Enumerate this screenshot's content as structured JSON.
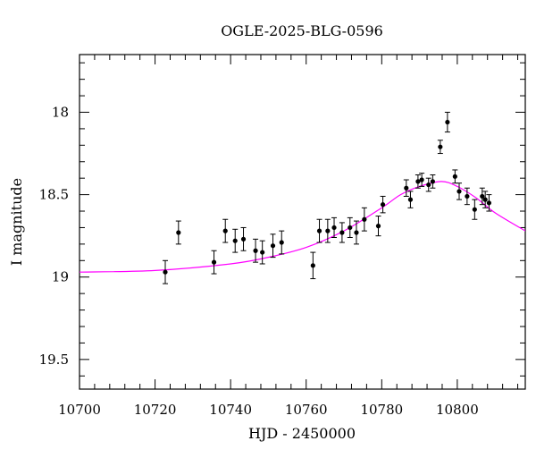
{
  "chart_data": {
    "type": "scatter",
    "title": "OGLE-2025-BLG-0596",
    "xlabel": "HJD - 2450000",
    "ylabel": "I magnitude",
    "xlim": [
      10700,
      10818
    ],
    "ylim": [
      17.65,
      19.68
    ],
    "y_inverted": true,
    "x_ticks": [
      10700,
      10720,
      10740,
      10760,
      10780,
      10800
    ],
    "y_ticks": [
      18,
      18.5,
      19,
      19.5
    ],
    "y_tick_labels": [
      "18",
      "18.5",
      "19",
      "19.5"
    ],
    "colors": {
      "model": "#ff00ff",
      "points": "#000000",
      "frame": "#000000"
    },
    "series": [
      {
        "type": "errorbar_points",
        "points": [
          {
            "x": 10722.7,
            "y": 18.97,
            "err": 0.07
          },
          {
            "x": 10726.2,
            "y": 18.73,
            "err": 0.07
          },
          {
            "x": 10735.6,
            "y": 18.91,
            "err": 0.07
          },
          {
            "x": 10738.6,
            "y": 18.72,
            "err": 0.07
          },
          {
            "x": 10741.2,
            "y": 18.78,
            "err": 0.07
          },
          {
            "x": 10743.4,
            "y": 18.77,
            "err": 0.07
          },
          {
            "x": 10746.6,
            "y": 18.84,
            "err": 0.07
          },
          {
            "x": 10748.4,
            "y": 18.85,
            "err": 0.07
          },
          {
            "x": 10751.2,
            "y": 18.81,
            "err": 0.07
          },
          {
            "x": 10753.5,
            "y": 18.79,
            "err": 0.07
          },
          {
            "x": 10761.8,
            "y": 18.93,
            "err": 0.08
          },
          {
            "x": 10763.5,
            "y": 18.72,
            "err": 0.07
          },
          {
            "x": 10765.7,
            "y": 18.72,
            "err": 0.07
          },
          {
            "x": 10767.4,
            "y": 18.7,
            "err": 0.06
          },
          {
            "x": 10769.5,
            "y": 18.73,
            "err": 0.06
          },
          {
            "x": 10771.6,
            "y": 18.7,
            "err": 0.06
          },
          {
            "x": 10773.3,
            "y": 18.73,
            "err": 0.07
          },
          {
            "x": 10775.4,
            "y": 18.65,
            "err": 0.07
          },
          {
            "x": 10779.1,
            "y": 18.69,
            "err": 0.06
          },
          {
            "x": 10780.3,
            "y": 18.56,
            "err": 0.05
          },
          {
            "x": 10786.5,
            "y": 18.46,
            "err": 0.05
          },
          {
            "x": 10787.6,
            "y": 18.53,
            "err": 0.05
          },
          {
            "x": 10789.6,
            "y": 18.42,
            "err": 0.04
          },
          {
            "x": 10790.6,
            "y": 18.41,
            "err": 0.04
          },
          {
            "x": 10792.4,
            "y": 18.44,
            "err": 0.04
          },
          {
            "x": 10793.5,
            "y": 18.42,
            "err": 0.04
          },
          {
            "x": 10795.5,
            "y": 18.21,
            "err": 0.04
          },
          {
            "x": 10797.4,
            "y": 18.06,
            "err": 0.06
          },
          {
            "x": 10799.4,
            "y": 18.39,
            "err": 0.04
          },
          {
            "x": 10800.5,
            "y": 18.48,
            "err": 0.05
          },
          {
            "x": 10802.6,
            "y": 18.51,
            "err": 0.05
          },
          {
            "x": 10804.6,
            "y": 18.59,
            "err": 0.06
          },
          {
            "x": 10806.6,
            "y": 18.51,
            "err": 0.05
          },
          {
            "x": 10807.4,
            "y": 18.53,
            "err": 0.05
          },
          {
            "x": 10808.4,
            "y": 18.55,
            "err": 0.05
          }
        ]
      },
      {
        "type": "model_curve",
        "peak_x": 10795.8,
        "peak_y": 18.42,
        "points": [
          {
            "x": 10700,
            "y": 18.97
          },
          {
            "x": 10720,
            "y": 18.96
          },
          {
            "x": 10740,
            "y": 18.92
          },
          {
            "x": 10750,
            "y": 18.88
          },
          {
            "x": 10760,
            "y": 18.82
          },
          {
            "x": 10770,
            "y": 18.72
          },
          {
            "x": 10780,
            "y": 18.58
          },
          {
            "x": 10785,
            "y": 18.5
          },
          {
            "x": 10790,
            "y": 18.45
          },
          {
            "x": 10795.8,
            "y": 18.42
          },
          {
            "x": 10800,
            "y": 18.45
          },
          {
            "x": 10805,
            "y": 18.52
          },
          {
            "x": 10810,
            "y": 18.61
          },
          {
            "x": 10818,
            "y": 18.72
          }
        ]
      }
    ]
  }
}
